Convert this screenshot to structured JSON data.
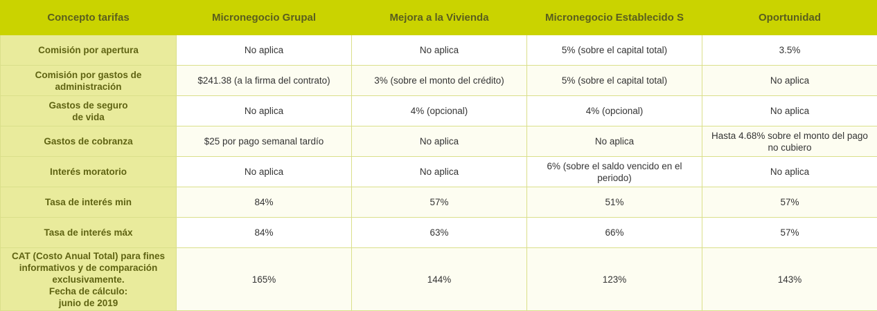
{
  "table": {
    "headers": [
      "Concepto tarifas",
      "Micronegocio Grupal",
      "Mejora a la Vivienda",
      "Micronegocio Establecido S",
      "Oportunidad"
    ],
    "rows": [
      {
        "label": [
          "Comisión por apertura"
        ],
        "cells": [
          [
            "No aplica"
          ],
          [
            "No aplica"
          ],
          [
            "5% (sobre el capital total)"
          ],
          [
            "3.5%"
          ]
        ]
      },
      {
        "label": [
          "Comisión por gastos de",
          "administración"
        ],
        "cells": [
          [
            "$241.38 (a la firma del contrato)"
          ],
          [
            "3% (sobre el monto del crédito)"
          ],
          [
            "5% (sobre el capital total)"
          ],
          [
            "No aplica"
          ]
        ]
      },
      {
        "label": [
          "Gastos de seguro",
          "de vida"
        ],
        "cells": [
          [
            "No aplica"
          ],
          [
            "4% (opcional)"
          ],
          [
            "4% (opcional)"
          ],
          [
            "No aplica"
          ]
        ]
      },
      {
        "label": [
          "Gastos de cobranza"
        ],
        "cells": [
          [
            "$25 por pago semanal tardío"
          ],
          [
            "No aplica"
          ],
          [
            "No aplica"
          ],
          [
            "Hasta 4.68% sobre el monto del pago",
            "no cubiero"
          ]
        ]
      },
      {
        "label": [
          "Interés moratorio"
        ],
        "cells": [
          [
            "No aplica"
          ],
          [
            "No aplica"
          ],
          [
            "6% (sobre el saldo vencido en el",
            "periodo)"
          ],
          [
            "No aplica"
          ]
        ]
      },
      {
        "label": [
          "Tasa de interés min"
        ],
        "cells": [
          [
            "84%"
          ],
          [
            "57%"
          ],
          [
            "51%"
          ],
          [
            "57%"
          ]
        ]
      },
      {
        "label": [
          "Tasa de interés máx"
        ],
        "cells": [
          [
            "84%"
          ],
          [
            "63%"
          ],
          [
            "66%"
          ],
          [
            "57%"
          ]
        ]
      },
      {
        "label": [
          "CAT (Costo Anual Total) para fines",
          "informativos y de comparación",
          "exclusivamente.",
          "Fecha de cálculo:",
          "junio de 2019"
        ],
        "cells": [
          [
            "165%"
          ],
          [
            "144%"
          ],
          [
            "123%"
          ],
          [
            "143%"
          ]
        ]
      }
    ]
  }
}
